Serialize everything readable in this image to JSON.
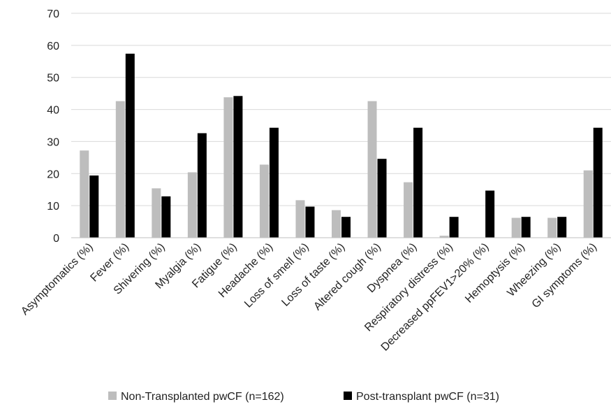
{
  "chart_data": {
    "type": "bar",
    "categories": [
      "Asymptomatics (%)",
      "Fever (%)",
      "Shivering (%)",
      "Myalgia (%)",
      "Fatigue (%)",
      "Headache (%)",
      "Loss of smell (%)",
      "Loss of taste (%)",
      "Altered cough (%)",
      "Dyspnea (%)",
      "Respiratory distress (%)",
      "Decreased ppFEV1>20% (%)",
      "Hemoptysis (%)",
      "Wheezing (%)",
      "GI symptoms (%)"
    ],
    "series": [
      {
        "name": "Non-Transplanted pwCF (n=162)",
        "color": "#bdbdbd",
        "values": [
          27.2,
          42.6,
          15.4,
          20.4,
          43.8,
          22.8,
          11.7,
          8.6,
          42.6,
          17.3,
          0.6,
          0,
          6.2,
          6.2,
          21.0
        ]
      },
      {
        "name": "Post-transplant pwCF (n=31)",
        "color": "#000000",
        "values": [
          19.4,
          57.4,
          12.9,
          32.6,
          44.2,
          34.3,
          9.7,
          6.5,
          24.6,
          34.3,
          6.5,
          14.7,
          6.5,
          6.5,
          34.3
        ]
      }
    ],
    "yticks": [
      "0",
      "10",
      "20",
      "30",
      "40",
      "50",
      "60",
      "70"
    ],
    "ylim": [
      0,
      70
    ],
    "grid": true,
    "legend_position": "bottom"
  }
}
